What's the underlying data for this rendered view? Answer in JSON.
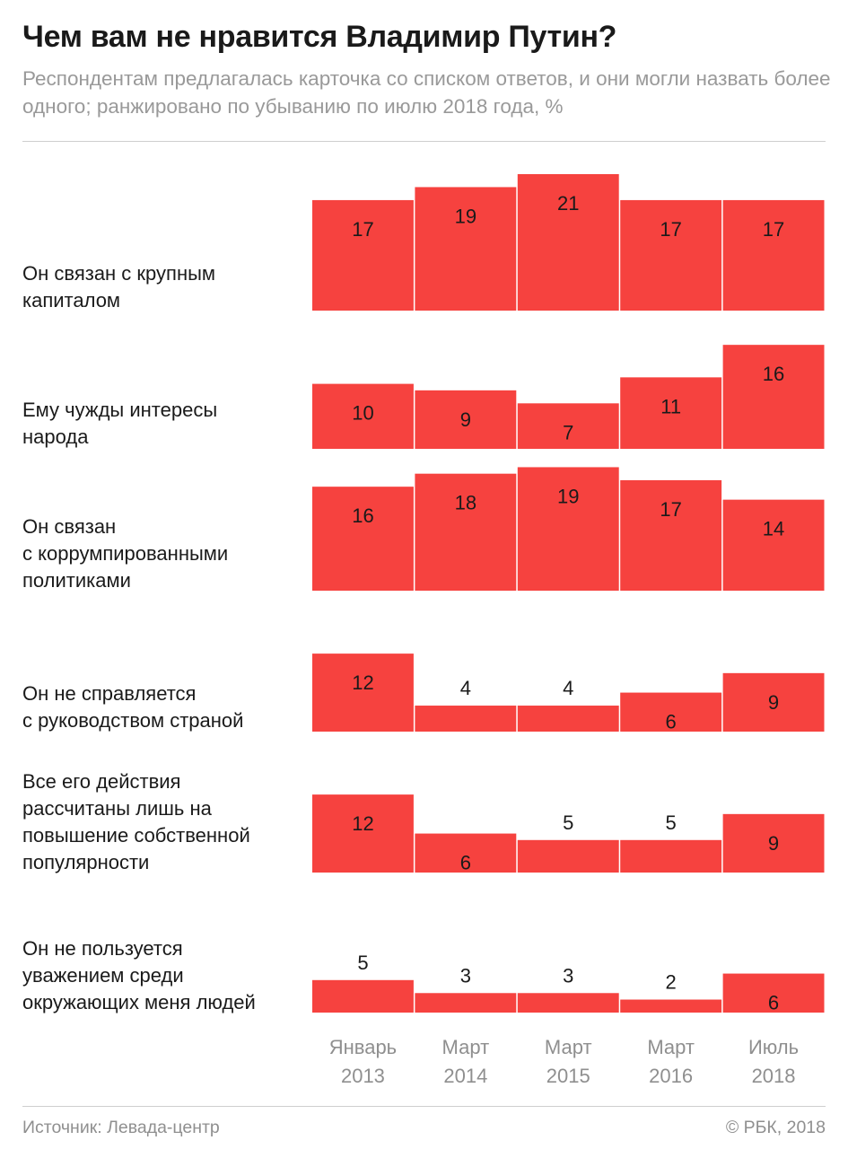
{
  "title": "Чем вам не нравится Владимир Путин?",
  "subtitle": "Респондентам предлагалась карточка со списком ответов, и они могли назвать более одного; ранжировано по убыванию по июлю 2018 года, %",
  "colors": {
    "bar": "#f6423f",
    "bar_text": "#1a1a1a",
    "axis_text": "#8f8f8f"
  },
  "chart_data": {
    "type": "bar",
    "categories": [
      "Январь 2013",
      "Март 2014",
      "Март 2015",
      "Март 2016",
      "Июль 2018"
    ],
    "category_lines": [
      [
        "Январь",
        "2013"
      ],
      [
        "Март",
        "2014"
      ],
      [
        "Март",
        "2015"
      ],
      [
        "Март",
        "2016"
      ],
      [
        "Июль",
        "2018"
      ]
    ],
    "series": [
      {
        "name": "Он связан с крупным капиталом",
        "label_lines": [
          "Он связан с крупным",
          "капиталом"
        ],
        "values": [
          17,
          19,
          21,
          17,
          17
        ]
      },
      {
        "name": "Ему чужды интересы народа",
        "label_lines": [
          "Ему чужды интересы",
          "народа"
        ],
        "values": [
          10,
          9,
          7,
          11,
          16
        ]
      },
      {
        "name": "Он связан с коррумпированными политиками",
        "label_lines": [
          "Он связан",
          "с коррумпированными",
          "политиками"
        ],
        "values": [
          16,
          18,
          19,
          17,
          14
        ]
      },
      {
        "name": "Он не справляется с руководством страной",
        "label_lines": [
          "Он не справляется",
          "с руководством страной"
        ],
        "values": [
          12,
          4,
          4,
          6,
          9
        ]
      },
      {
        "name": "Все его действия рассчитаны лишь на повышение собственной популярности",
        "label_lines": [
          "Все его действия",
          "рассчитаны лишь на",
          "повышение собственной",
          "популярности"
        ],
        "values": [
          12,
          6,
          5,
          5,
          9
        ]
      },
      {
        "name": "Он не пользуется уважением среди окружающих меня людей",
        "label_lines": [
          "Он не пользуется",
          "уважением среди",
          "окружающих меня людей"
        ],
        "values": [
          5,
          3,
          3,
          2,
          6
        ]
      }
    ],
    "grid": false,
    "legend": "none"
  },
  "footer": {
    "source": "Источник: Левада-центр",
    "copyright": "© РБК, 2018"
  }
}
